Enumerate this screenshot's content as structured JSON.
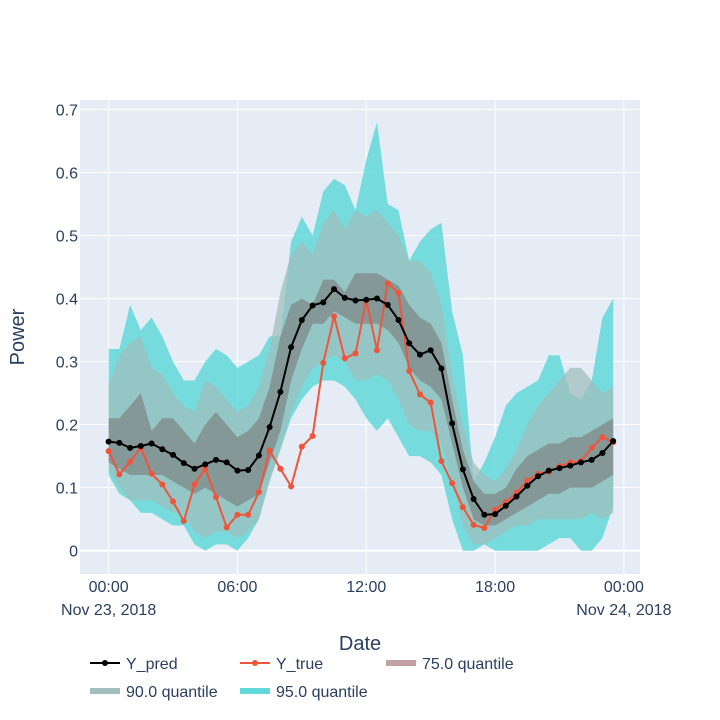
{
  "chart_data": {
    "type": "line",
    "xlabel": "Date",
    "ylabel": "Power",
    "grid": true,
    "legend_position": "bottom",
    "xlim": [
      "2018-11-22 22:40",
      "2018-11-24 00:45"
    ],
    "ylim": [
      -0.037,
      0.715
    ],
    "x_ticks": [
      {
        "time": "2018-11-23 00:00",
        "label": "00:00",
        "sublabel": "Nov 23, 2018"
      },
      {
        "time": "2018-11-23 06:00",
        "label": "06:00",
        "sublabel": ""
      },
      {
        "time": "2018-11-23 12:00",
        "label": "12:00",
        "sublabel": ""
      },
      {
        "time": "2018-11-23 18:00",
        "label": "18:00",
        "sublabel": ""
      },
      {
        "time": "2018-11-24 00:00",
        "label": "00:00",
        "sublabel": "Nov 24, 2018"
      }
    ],
    "y_ticks": [
      {
        "value": 0,
        "label": "0"
      },
      {
        "value": 0.1,
        "label": "0.1"
      },
      {
        "value": 0.2,
        "label": "0.2"
      },
      {
        "value": 0.3,
        "label": "0.3"
      },
      {
        "value": 0.4,
        "label": "0.4"
      },
      {
        "value": 0.5,
        "label": "0.5"
      },
      {
        "value": 0.6,
        "label": "0.6"
      },
      {
        "value": 0.7,
        "label": "0.7"
      }
    ],
    "x": [
      "2018-11-23 00:00",
      "2018-11-23 00:30",
      "2018-11-23 01:00",
      "2018-11-23 01:30",
      "2018-11-23 02:00",
      "2018-11-23 02:30",
      "2018-11-23 03:00",
      "2018-11-23 03:30",
      "2018-11-23 04:00",
      "2018-11-23 04:30",
      "2018-11-23 05:00",
      "2018-11-23 05:30",
      "2018-11-23 06:00",
      "2018-11-23 06:30",
      "2018-11-23 07:00",
      "2018-11-23 07:30",
      "2018-11-23 08:00",
      "2018-11-23 08:30",
      "2018-11-23 09:00",
      "2018-11-23 09:30",
      "2018-11-23 10:00",
      "2018-11-23 10:30",
      "2018-11-23 11:00",
      "2018-11-23 11:30",
      "2018-11-23 12:00",
      "2018-11-23 12:30",
      "2018-11-23 13:00",
      "2018-11-23 13:30",
      "2018-11-23 14:00",
      "2018-11-23 14:30",
      "2018-11-23 15:00",
      "2018-11-23 15:30",
      "2018-11-23 16:00",
      "2018-11-23 16:30",
      "2018-11-23 17:00",
      "2018-11-23 17:30",
      "2018-11-23 18:00",
      "2018-11-23 18:30",
      "2018-11-23 19:00",
      "2018-11-23 19:30",
      "2018-11-23 20:00",
      "2018-11-23 20:30",
      "2018-11-23 21:00",
      "2018-11-23 21:30",
      "2018-11-23 22:00",
      "2018-11-23 22:30",
      "2018-11-23 23:00",
      "2018-11-23 23:30"
    ],
    "series": [
      {
        "name": "Y_pred",
        "color": "#000000",
        "mode": "lines+markers",
        "values": [
          0.173,
          0.171,
          0.163,
          0.166,
          0.17,
          0.161,
          0.152,
          0.139,
          0.13,
          0.137,
          0.144,
          0.14,
          0.127,
          0.128,
          0.151,
          0.196,
          0.252,
          0.323,
          0.366,
          0.389,
          0.394,
          0.415,
          0.401,
          0.397,
          0.398,
          0.4,
          0.39,
          0.366,
          0.329,
          0.311,
          0.318,
          0.289,
          0.202,
          0.129,
          0.082,
          0.057,
          0.058,
          0.071,
          0.086,
          0.103,
          0.118,
          0.127,
          0.131,
          0.135,
          0.14,
          0.144,
          0.155,
          0.174
        ]
      },
      {
        "name": "Y_true",
        "color": "#EF553B",
        "mode": "lines+markers",
        "values": [
          0.158,
          0.121,
          0.141,
          0.163,
          0.122,
          0.105,
          0.078,
          0.047,
          0.105,
          0.13,
          0.085,
          0.037,
          0.057,
          0.057,
          0.093,
          0.159,
          0.13,
          0.102,
          0.165,
          0.182,
          0.298,
          0.372,
          0.305,
          0.313,
          0.397,
          0.318,
          0.424,
          0.409,
          0.285,
          0.248,
          0.235,
          0.142,
          0.107,
          0.069,
          0.041,
          0.036,
          0.065,
          0.077,
          0.092,
          0.111,
          0.122,
          0.125,
          0.134,
          0.14,
          0.142,
          0.163,
          0.18,
          0.172
        ]
      },
      {
        "name": "75.0 quantile",
        "color": "#C2A1A2",
        "type": "band",
        "upper": [
          0.21,
          0.21,
          0.23,
          0.25,
          0.19,
          0.21,
          0.21,
          0.19,
          0.17,
          0.2,
          0.22,
          0.2,
          0.18,
          0.19,
          0.21,
          0.26,
          0.34,
          0.39,
          0.4,
          0.39,
          0.43,
          0.43,
          0.41,
          0.44,
          0.44,
          0.44,
          0.43,
          0.42,
          0.39,
          0.37,
          0.36,
          0.33,
          0.24,
          0.16,
          0.11,
          0.09,
          0.09,
          0.1,
          0.13,
          0.15,
          0.16,
          0.17,
          0.17,
          0.18,
          0.18,
          0.19,
          0.2,
          0.21
        ],
        "lower": [
          0.14,
          0.13,
          0.12,
          0.12,
          0.12,
          0.12,
          0.11,
          0.1,
          0.09,
          0.1,
          0.09,
          0.08,
          0.07,
          0.08,
          0.09,
          0.14,
          0.19,
          0.27,
          0.32,
          0.36,
          0.36,
          0.38,
          0.37,
          0.36,
          0.36,
          0.36,
          0.35,
          0.33,
          0.29,
          0.27,
          0.26,
          0.24,
          0.17,
          0.1,
          0.05,
          0.04,
          0.04,
          0.05,
          0.06,
          0.07,
          0.08,
          0.09,
          0.09,
          0.1,
          0.1,
          0.1,
          0.11,
          0.12
        ]
      },
      {
        "name": "90.0 quantile",
        "color": "#A0BFBD",
        "type": "band",
        "upper": [
          0.26,
          0.31,
          0.33,
          0.34,
          0.29,
          0.28,
          0.25,
          0.23,
          0.22,
          0.27,
          0.26,
          0.24,
          0.22,
          0.23,
          0.26,
          0.32,
          0.41,
          0.47,
          0.49,
          0.47,
          0.52,
          0.54,
          0.51,
          0.54,
          0.53,
          0.54,
          0.52,
          0.5,
          0.46,
          0.46,
          0.44,
          0.39,
          0.28,
          0.2,
          0.14,
          0.12,
          0.11,
          0.13,
          0.16,
          0.2,
          0.23,
          0.25,
          0.27,
          0.29,
          0.29,
          0.27,
          0.25,
          0.26
        ],
        "lower": [
          0.13,
          0.1,
          0.08,
          0.08,
          0.08,
          0.07,
          0.06,
          0.06,
          0.03,
          0.02,
          0.03,
          0.03,
          0.02,
          0.03,
          0.05,
          0.11,
          0.16,
          0.22,
          0.26,
          0.29,
          0.3,
          0.31,
          0.3,
          0.27,
          0.27,
          0.28,
          0.27,
          0.24,
          0.2,
          0.19,
          0.19,
          0.17,
          0.11,
          0.04,
          0.01,
          0.01,
          0.02,
          0.03,
          0.04,
          0.04,
          0.05,
          0.05,
          0.05,
          0.05,
          0.05,
          0.06,
          0.05,
          0.06
        ]
      },
      {
        "name": "95.0 quantile",
        "color": "#63D8D8",
        "type": "band",
        "upper": [
          0.32,
          0.32,
          0.39,
          0.35,
          0.37,
          0.34,
          0.3,
          0.27,
          0.27,
          0.3,
          0.32,
          0.31,
          0.29,
          0.3,
          0.31,
          0.34,
          0.34,
          0.49,
          0.53,
          0.5,
          0.57,
          0.59,
          0.58,
          0.54,
          0.62,
          0.68,
          0.55,
          0.54,
          0.46,
          0.49,
          0.51,
          0.52,
          0.38,
          0.31,
          0.11,
          0.14,
          0.18,
          0.23,
          0.25,
          0.26,
          0.27,
          0.31,
          0.31,
          0.25,
          0.24,
          0.27,
          0.37,
          0.4
        ],
        "lower": [
          0.12,
          0.09,
          0.08,
          0.06,
          0.06,
          0.05,
          0.04,
          0.04,
          0.01,
          0.0,
          0.01,
          0.01,
          0.0,
          0.02,
          0.05,
          0.11,
          0.16,
          0.21,
          0.24,
          0.26,
          0.27,
          0.27,
          0.26,
          0.24,
          0.21,
          0.19,
          0.21,
          0.18,
          0.15,
          0.15,
          0.14,
          0.12,
          0.05,
          0.0,
          0.0,
          0.01,
          0.0,
          0.0,
          0.0,
          0.0,
          0.0,
          0.01,
          0.02,
          0.02,
          0.0,
          0.0,
          0.02,
          0.07
        ]
      }
    ]
  },
  "legend": {
    "items": [
      {
        "label": "Y_pred",
        "kind": "line-marker",
        "color": "#000000"
      },
      {
        "label": "Y_true",
        "kind": "line-marker",
        "color": "#EF553B"
      },
      {
        "label": "75.0 quantile",
        "kind": "band",
        "color": "#C2A1A2"
      },
      {
        "label": "90.0 quantile",
        "kind": "band",
        "color": "#A0BFBD"
      },
      {
        "label": "95.0 quantile",
        "kind": "band",
        "color": "#63D8D8"
      }
    ]
  },
  "colors": {
    "plot_background": "#E5ECF6",
    "grid": "#FFFFFF",
    "text": "#2a3f5f",
    "mixed_band": "#7A7A7A"
  }
}
